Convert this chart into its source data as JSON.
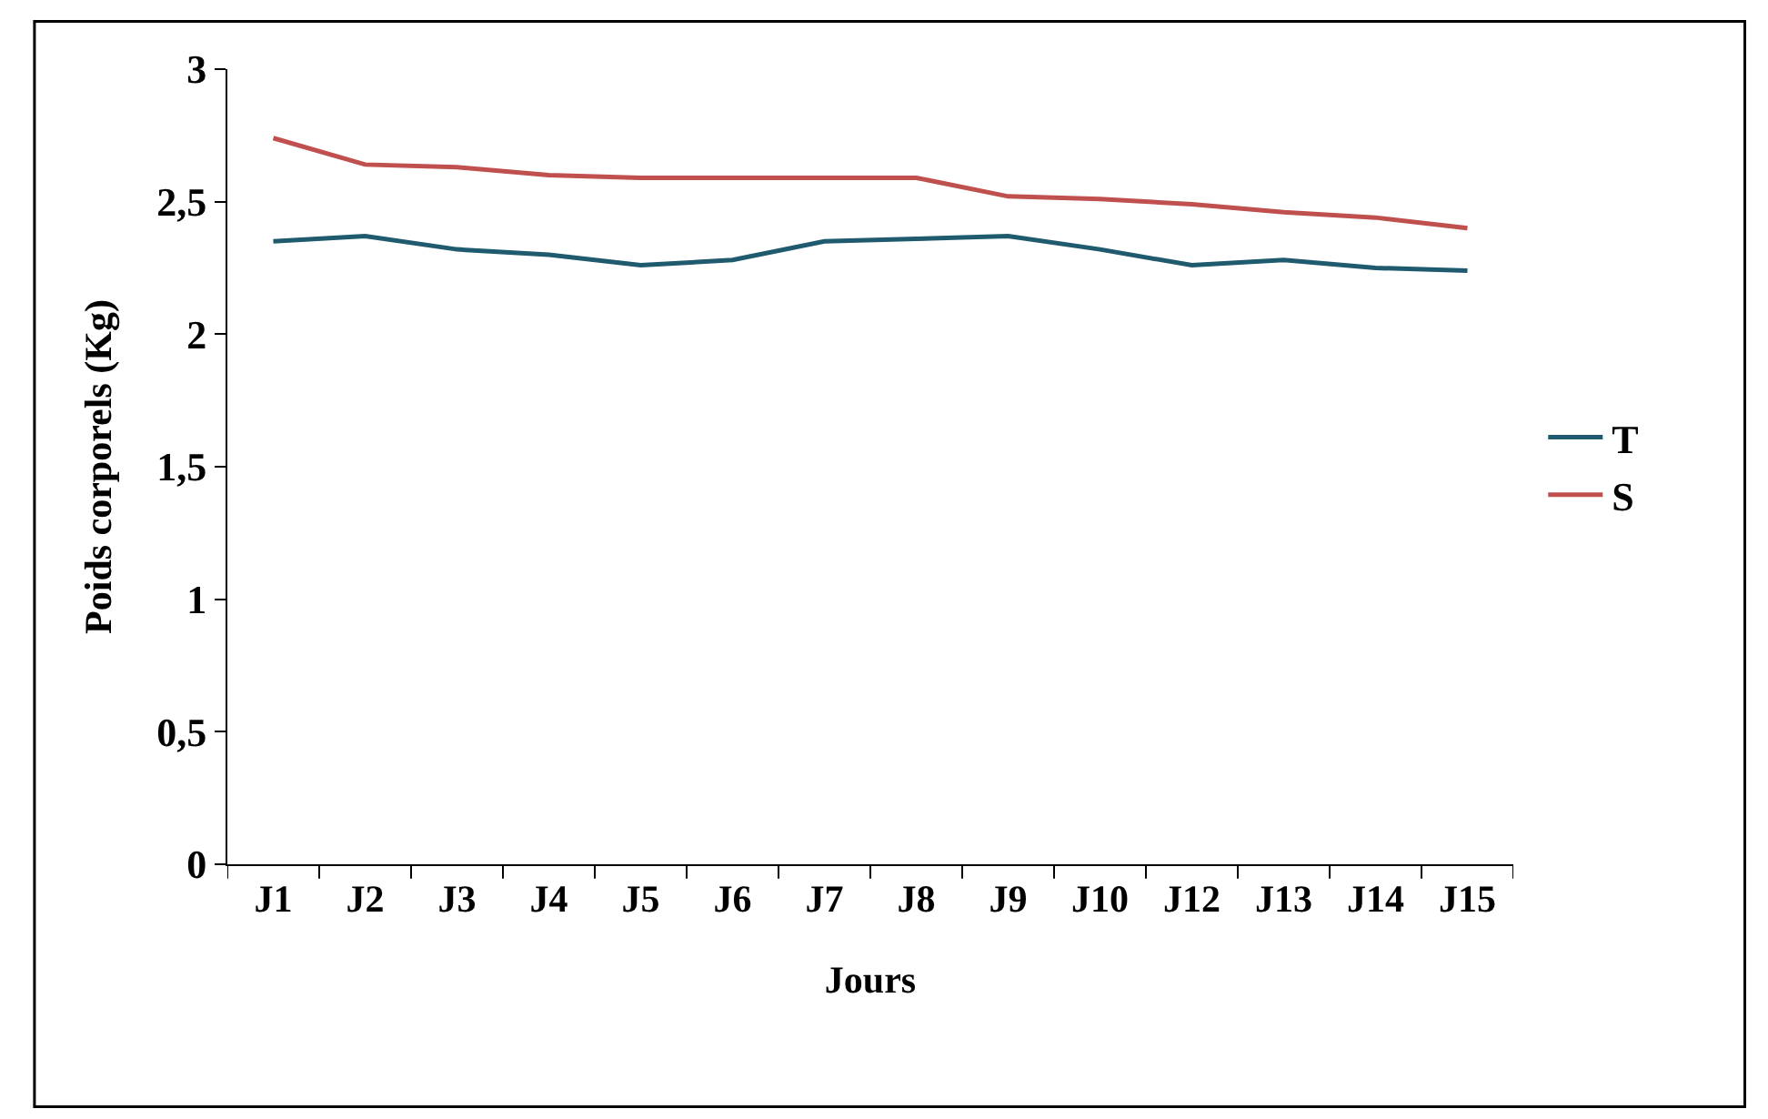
{
  "chart_data": {
    "type": "line",
    "xlabel": "Jours",
    "ylabel": "Poids corporels (Kg)",
    "categories": [
      "J1",
      "J2",
      "J3",
      "J4",
      "J5",
      "J6",
      "J7",
      "J8",
      "J9",
      "J10",
      "J12",
      "J13",
      "J14",
      "J15"
    ],
    "series": [
      {
        "name": "T",
        "color": "#1f5a6e",
        "values": [
          2.35,
          2.37,
          2.32,
          2.3,
          2.26,
          2.28,
          2.35,
          2.36,
          2.37,
          2.32,
          2.26,
          2.28,
          2.25,
          2.24
        ]
      },
      {
        "name": "S",
        "color": "#c0504d",
        "values": [
          2.74,
          2.64,
          2.63,
          2.6,
          2.59,
          2.59,
          2.59,
          2.59,
          2.52,
          2.51,
          2.49,
          2.46,
          2.44,
          2.4
        ]
      }
    ],
    "ylim": [
      0,
      3
    ],
    "yticks": [
      0,
      {
        "value": 0.5,
        "label": "0,5"
      },
      1,
      {
        "value": 1.5,
        "label": "1,5"
      },
      2,
      {
        "value": 2.5,
        "label": "2,5"
      },
      3
    ],
    "legend": "right",
    "marker": "none",
    "line_style": "solid"
  }
}
